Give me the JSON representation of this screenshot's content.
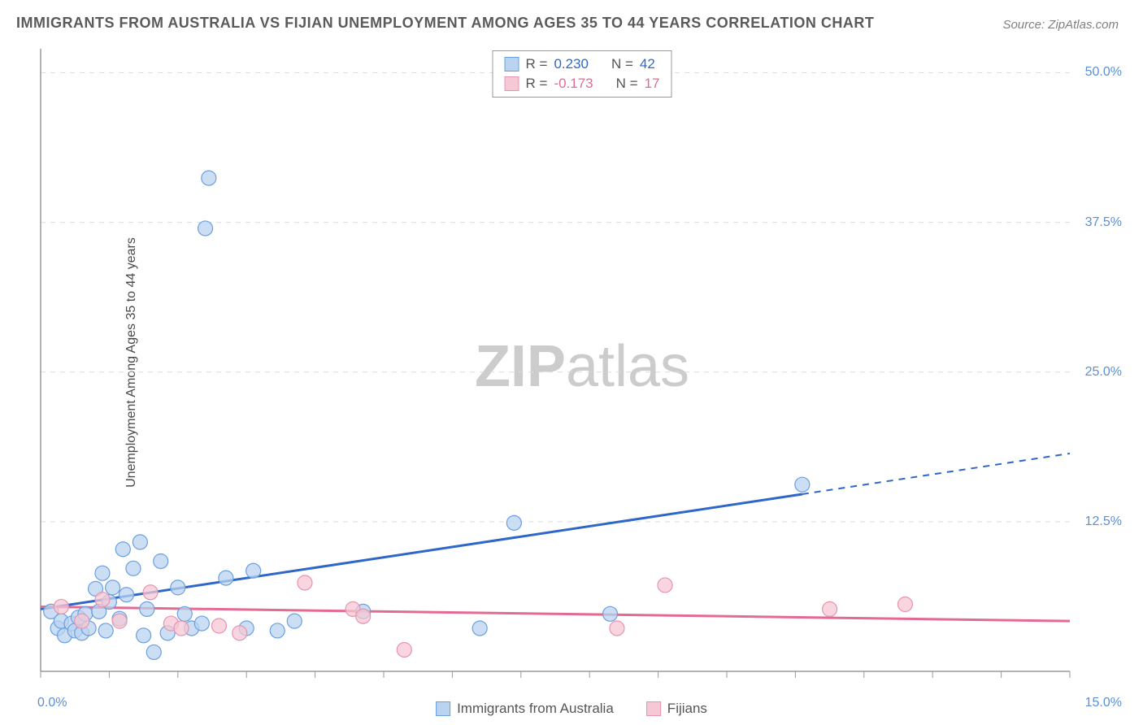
{
  "title": "IMMIGRANTS FROM AUSTRALIA VS FIJIAN UNEMPLOYMENT AMONG AGES 35 TO 44 YEARS CORRELATION CHART",
  "source": "Source: ZipAtlas.com",
  "y_axis_label": "Unemployment Among Ages 35 to 44 years",
  "watermark_a": "ZIP",
  "watermark_b": "atlas",
  "chart": {
    "type": "scatter",
    "xlim": [
      0,
      15
    ],
    "ylim": [
      0,
      52
    ],
    "x_tick_left": "0.0%",
    "x_tick_right": "15.0%",
    "y_ticks": [
      {
        "v": 12.5,
        "label": "12.5%"
      },
      {
        "v": 25.0,
        "label": "25.0%"
      },
      {
        "v": 37.5,
        "label": "37.5%"
      },
      {
        "v": 50.0,
        "label": "50.0%"
      }
    ],
    "x_minor_tick_step": 1.0,
    "background_color": "#ffffff",
    "grid_color": "#dcdcdc",
    "axis_color": "#9a9a9a",
    "marker_radius": 9,
    "marker_stroke_width": 1.2,
    "series": [
      {
        "name": "Immigrants from Australia",
        "fill": "#b9d3f0",
        "stroke": "#6aa0e0",
        "line_color": "#2f67c9",
        "r_value": "0.230",
        "n_value": "42",
        "trend": {
          "x1": 0,
          "y1": 5.2,
          "x2": 11.1,
          "y2": 14.8,
          "ext_x2": 15,
          "ext_y2": 18.2
        },
        "points": [
          [
            0.15,
            5.0
          ],
          [
            0.25,
            3.6
          ],
          [
            0.3,
            4.2
          ],
          [
            0.35,
            3.0
          ],
          [
            0.45,
            4.0
          ],
          [
            0.5,
            3.4
          ],
          [
            0.55,
            4.5
          ],
          [
            0.6,
            3.2
          ],
          [
            0.65,
            4.8
          ],
          [
            0.7,
            3.6
          ],
          [
            0.8,
            6.9
          ],
          [
            0.85,
            5.0
          ],
          [
            0.9,
            8.2
          ],
          [
            0.95,
            3.4
          ],
          [
            1.0,
            5.8
          ],
          [
            1.05,
            7.0
          ],
          [
            1.15,
            4.4
          ],
          [
            1.2,
            10.2
          ],
          [
            1.25,
            6.4
          ],
          [
            1.35,
            8.6
          ],
          [
            1.45,
            10.8
          ],
          [
            1.5,
            3.0
          ],
          [
            1.55,
            5.2
          ],
          [
            1.65,
            1.6
          ],
          [
            1.75,
            9.2
          ],
          [
            1.85,
            3.2
          ],
          [
            2.0,
            7.0
          ],
          [
            2.1,
            4.8
          ],
          [
            2.2,
            3.6
          ],
          [
            2.35,
            4.0
          ],
          [
            2.4,
            37.0
          ],
          [
            2.45,
            41.2
          ],
          [
            2.7,
            7.8
          ],
          [
            3.0,
            3.6
          ],
          [
            3.1,
            8.4
          ],
          [
            3.45,
            3.4
          ],
          [
            3.7,
            4.2
          ],
          [
            4.7,
            5.0
          ],
          [
            6.4,
            3.6
          ],
          [
            6.9,
            12.4
          ],
          [
            8.3,
            4.8
          ],
          [
            11.1,
            15.6
          ]
        ]
      },
      {
        "name": "Fijians",
        "fill": "#f6c7d4",
        "stroke": "#e794ae",
        "line_color": "#e36a93",
        "r_value": "-0.173",
        "n_value": "17",
        "trend": {
          "x1": 0,
          "y1": 5.4,
          "x2": 15,
          "y2": 4.2
        },
        "points": [
          [
            0.3,
            5.4
          ],
          [
            0.6,
            4.2
          ],
          [
            0.9,
            6.0
          ],
          [
            1.15,
            4.2
          ],
          [
            1.6,
            6.6
          ],
          [
            1.9,
            4.0
          ],
          [
            2.05,
            3.6
          ],
          [
            2.6,
            3.8
          ],
          [
            2.9,
            3.2
          ],
          [
            3.85,
            7.4
          ],
          [
            4.55,
            5.2
          ],
          [
            4.7,
            4.6
          ],
          [
            5.3,
            1.8
          ],
          [
            8.4,
            3.6
          ],
          [
            9.1,
            7.2
          ],
          [
            11.5,
            5.2
          ],
          [
            12.6,
            5.6
          ]
        ]
      }
    ]
  },
  "legend_corr": {
    "r_label": "R  =",
    "n_label": "N  ="
  },
  "bottom_legend": {
    "series1": "Immigrants from Australia",
    "series2": "Fijians"
  }
}
